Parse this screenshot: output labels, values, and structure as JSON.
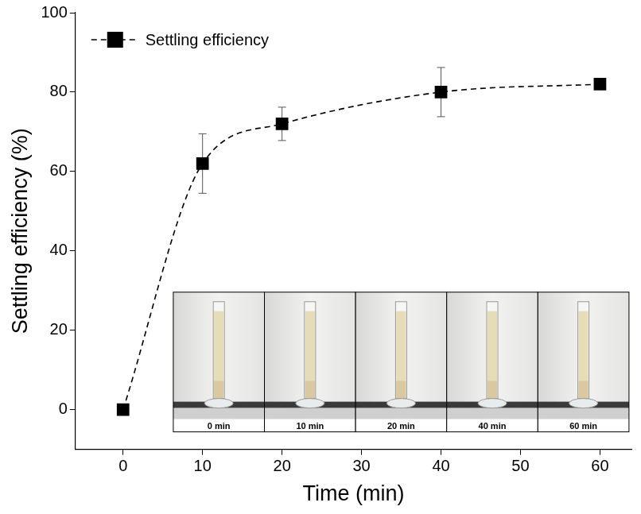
{
  "chart_data": {
    "type": "line",
    "x_label": "Time (min)",
    "y_label": "Settling efficiency (%)",
    "x": [
      0,
      10,
      20,
      40,
      60
    ],
    "series": [
      {
        "name": "Settling efficiency",
        "color": "#000000",
        "values": [
          0,
          62,
          72,
          80,
          82
        ],
        "errors": [
          0,
          7.5,
          4.2,
          6.2,
          0
        ],
        "marker": "square",
        "line_style": "dashed"
      }
    ],
    "xlim": [
      -6,
      64
    ],
    "xticks": [
      0,
      10,
      20,
      30,
      40,
      50,
      60
    ],
    "ylim": [
      -10,
      100
    ],
    "yticks": [
      0,
      20,
      40,
      60,
      80,
      100
    ],
    "grid": false,
    "legend": "upper left",
    "inset_labels": [
      "0 min",
      "10 min",
      "20 min",
      "40 min",
      "60 min"
    ]
  }
}
